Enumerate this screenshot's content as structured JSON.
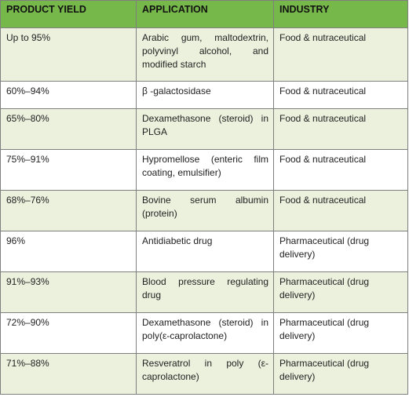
{
  "table": {
    "headers": [
      "PRODUCT YIELD",
      "APPLICATION",
      "INDUSTRY"
    ],
    "rows": [
      {
        "yield": "Up to 95%",
        "application": "Arabic gum, maltodextrin, polyvinyl alcohol, and modified starch",
        "industry": "Food & nutraceutical"
      },
      {
        "yield": "60%–94%",
        "application": "β -galactosidase",
        "industry": "Food & nutraceutical"
      },
      {
        "yield": "65%–80%",
        "application": "Dexamethasone (steroid) in PLGA",
        "industry": "Food & nutraceutical"
      },
      {
        "yield": "75%–91%",
        "application": "Hypromellose (enteric film coating, emulsifier)",
        "industry": "Food & nutraceutical"
      },
      {
        "yield": "68%–76%",
        "application": "Bovine serum albumin (protein)",
        "industry": "Food & nutraceutical"
      },
      {
        "yield": "96%",
        "application": "Antidiabetic drug",
        "industry": "Pharmaceutical (drug delivery)"
      },
      {
        "yield": "91%–93%",
        "application": "Blood pressure regulating drug",
        "industry": "Pharmaceutical (drug delivery)"
      },
      {
        "yield": "72%–90%",
        "application": "Dexamethasone (steroid) in poly(ε-caprolactone)",
        "industry": "Pharmaceutical (drug delivery)"
      },
      {
        "yield": "71%–88%",
        "application": "Resveratrol in poly (ε-caprolactone)",
        "industry": "Pharmaceutical (drug delivery)"
      }
    ]
  },
  "colors": {
    "header_bg": "#77b84a",
    "row_shade": "#ebf1dd",
    "border": "#7f7f7f"
  }
}
